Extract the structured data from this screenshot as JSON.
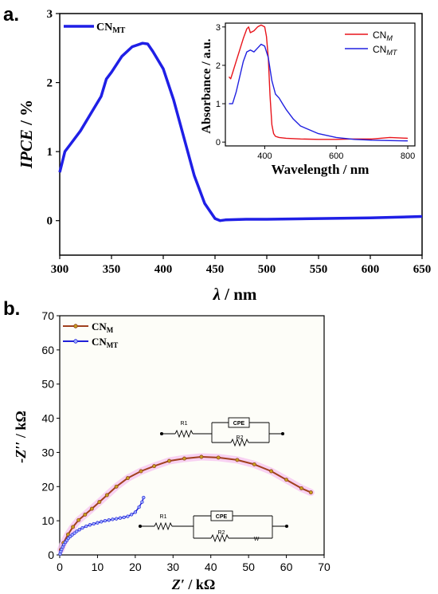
{
  "chart_data": [
    {
      "panel": "a.",
      "type": "line",
      "xlabel": "λ / nm",
      "ylabel": "IPCE / %",
      "xlim": [
        300,
        650
      ],
      "ylim": [
        -0.5,
        3
      ],
      "xticks": [
        "300",
        "350",
        "400",
        "450",
        "500",
        "550",
        "600",
        "650"
      ],
      "yticks": [
        "0",
        "1",
        "2",
        "3"
      ],
      "legend": "top-left",
      "colors": {
        "CN_MT": "#1f1fe6"
      },
      "series": [
        {
          "name": "CN_MT",
          "x": [
            300,
            305,
            310,
            320,
            330,
            340,
            345,
            350,
            360,
            370,
            380,
            385,
            390,
            400,
            410,
            420,
            430,
            440,
            450,
            455,
            460,
            480,
            500,
            550,
            600,
            650
          ],
          "y": [
            0.7,
            1.0,
            1.1,
            1.3,
            1.55,
            1.8,
            2.05,
            2.15,
            2.38,
            2.52,
            2.57,
            2.56,
            2.45,
            2.2,
            1.75,
            1.2,
            0.65,
            0.25,
            0.03,
            0.0,
            0.01,
            0.02,
            0.02,
            0.03,
            0.04,
            0.06
          ]
        }
      ],
      "inset": {
        "type": "line",
        "xlabel": "Wavelength / nm",
        "ylabel": "Absorbance / a.u.",
        "xlim": [
          290,
          820
        ],
        "ylim": [
          -0.1,
          3.1
        ],
        "xticks": [
          "400",
          "600",
          "800"
        ],
        "yticks": [
          "0",
          "1",
          "2",
          "3"
        ],
        "legend": "top-right",
        "colors": {
          "CN_M": "#e8141b",
          "CN_MT": "#2020e0"
        },
        "series": [
          {
            "name": "CN_M",
            "x": [
              300,
              305,
              310,
              320,
              330,
              340,
              350,
              355,
              360,
              370,
              380,
              390,
              400,
              405,
              410,
              415,
              420,
              425,
              430,
              440,
              460,
              500,
              550,
              600,
              650,
              700,
              750,
              800
            ],
            "y": [
              1.7,
              1.65,
              1.8,
              2.1,
              2.4,
              2.7,
              2.95,
              3.0,
              2.85,
              2.9,
              3.0,
              3.05,
              3.0,
              2.75,
              2.2,
              1.2,
              0.45,
              0.22,
              0.15,
              0.12,
              0.1,
              0.08,
              0.07,
              0.07,
              0.08,
              0.08,
              0.12,
              0.1
            ]
          },
          {
            "name": "CN_MT",
            "x": [
              300,
              310,
              320,
              330,
              340,
              350,
              360,
              370,
              380,
              390,
              400,
              410,
              420,
              430,
              440,
              450,
              460,
              480,
              500,
              550,
              600,
              650,
              700,
              750,
              800
            ],
            "y": [
              1.0,
              1.0,
              1.3,
              1.7,
              2.1,
              2.35,
              2.4,
              2.35,
              2.45,
              2.55,
              2.5,
              2.2,
              1.6,
              1.25,
              1.15,
              1.0,
              0.85,
              0.6,
              0.42,
              0.22,
              0.12,
              0.07,
              0.05,
              0.04,
              0.03
            ]
          }
        ]
      }
    },
    {
      "panel": "b.",
      "type": "scatter",
      "xlabel": "Z′ / kΩ",
      "ylabel": "-Z′′ / kΩ",
      "xlim": [
        0,
        70
      ],
      "ylim": [
        0,
        70
      ],
      "xticks": [
        "0",
        "10",
        "20",
        "30",
        "40",
        "50",
        "60",
        "70"
      ],
      "yticks": [
        "0",
        "10",
        "20",
        "30",
        "40",
        "50",
        "60",
        "70"
      ],
      "legend": "top-left",
      "colors": {
        "CN_M": "#a0401e",
        "CN_M_marker": "#c8a020",
        "CN_MT": "#2020d8",
        "highlight": "#f6c6f0"
      },
      "series": [
        {
          "name": "CN_M",
          "x": [
            0.3,
            1.0,
            2.2,
            3.5,
            5.0,
            6.7,
            8.5,
            10.5,
            12.5,
            15.0,
            18.0,
            21.5,
            25.0,
            29.0,
            33.0,
            37.5,
            42.0,
            47.0,
            51.5,
            56.0,
            60.0,
            64.0,
            66.5
          ],
          "y": [
            1.5,
            3.5,
            6.0,
            8.2,
            10.2,
            11.8,
            13.5,
            15.5,
            17.5,
            20.0,
            22.5,
            24.5,
            26.0,
            27.5,
            28.2,
            28.7,
            28.5,
            27.8,
            26.5,
            24.5,
            22.0,
            19.5,
            18.3
          ]
        },
        {
          "name": "CN_MT",
          "x": [
            0.1,
            0.3,
            0.5,
            0.8,
            1.1,
            1.5,
            1.9,
            2.3,
            2.8,
            3.3,
            3.9,
            4.5,
            5.2,
            6.0,
            7.0,
            8.0,
            9.0,
            10.0,
            11.0,
            12.0,
            13.0,
            14.0,
            15.0,
            16.0,
            17.0,
            18.0,
            19.0,
            20.0,
            21.0,
            21.8,
            22.2
          ],
          "y": [
            0.3,
            1.0,
            1.6,
            2.3,
            3.0,
            3.7,
            4.3,
            4.9,
            5.4,
            5.9,
            6.4,
            6.9,
            7.4,
            7.9,
            8.4,
            8.8,
            9.1,
            9.4,
            9.7,
            10.0,
            10.2,
            10.4,
            10.6,
            10.8,
            11.0,
            11.3,
            11.8,
            12.5,
            14.0,
            15.5,
            16.8
          ]
        }
      ],
      "circuits": [
        {
          "labels": [
            "R1",
            "CPE",
            "R2"
          ]
        },
        {
          "labels": [
            "R1",
            "CPE",
            "R2",
            "W"
          ]
        }
      ]
    }
  ],
  "legend_text": {
    "a_main": {
      "base": "CN",
      "sub": "MT"
    },
    "inset_m": {
      "base": "CN",
      "sub": "M"
    },
    "inset_mt": {
      "base": "CN",
      "sub": "MT"
    },
    "b_m": {
      "base": "CN",
      "sub": "M"
    },
    "b_mt": {
      "base": "CN",
      "sub": "MT"
    }
  }
}
